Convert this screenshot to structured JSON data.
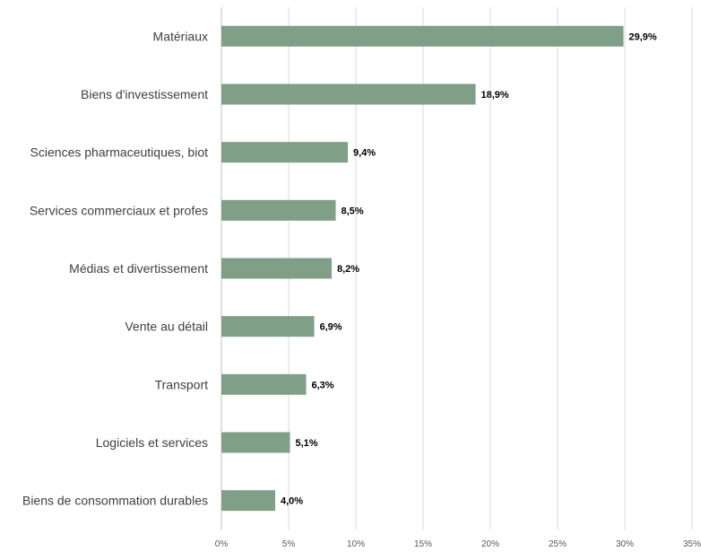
{
  "chart_data": {
    "type": "bar",
    "orientation": "horizontal",
    "categories": [
      "Matériaux",
      "Biens d'investissement",
      "Sciences pharmaceutiques, biot",
      "Services commerciaux et profes",
      "Médias et divertissement",
      "Vente au détail",
      "Transport",
      "Logiciels et services",
      "Biens de consommation durables"
    ],
    "values": [
      29.9,
      18.9,
      9.4,
      8.5,
      8.2,
      6.9,
      6.3,
      5.1,
      4.0
    ],
    "data_labels": [
      "29,9%",
      "18,9%",
      "9,4%",
      "8,5%",
      "8,2%",
      "6,9%",
      "6,3%",
      "5,1%",
      "4,0%"
    ],
    "xlim": [
      0,
      35
    ],
    "x_ticks": [
      0,
      5,
      10,
      15,
      20,
      25,
      30,
      35
    ],
    "x_tick_labels": [
      "0%",
      "5%",
      "10%",
      "15%",
      "20%",
      "25%",
      "30%",
      "35%"
    ],
    "grid": true,
    "legend": "none",
    "bar_color": "#7f9f87",
    "title": "",
    "xlabel": "",
    "ylabel": ""
  }
}
